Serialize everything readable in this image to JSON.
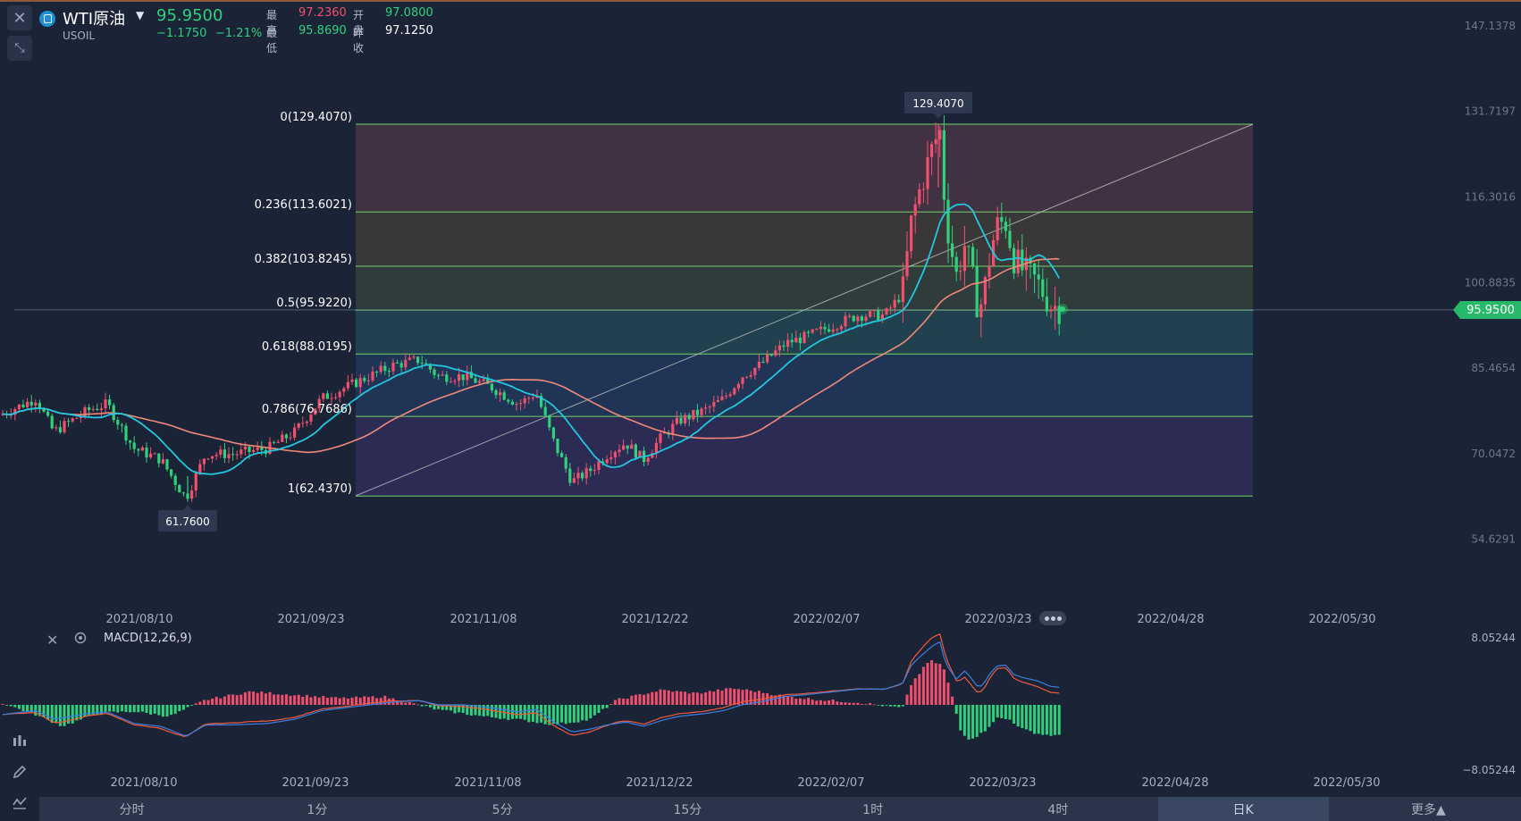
{
  "header": {
    "symbol_name": "WTI原油",
    "symbol_code": "USOIL",
    "price": "95.9500",
    "change": "−1.1750",
    "change_pct": "−1.21%",
    "high_label": "最高",
    "high": "97.2360",
    "open_label": "开盘",
    "open": "97.0800",
    "low_label": "最低",
    "low": "95.8690",
    "prev_label": "昨收",
    "prev_close": "97.1250"
  },
  "price_axis": [
    "147.1378",
    "131.7197",
    "116.3016",
    "100.8835",
    "85.4654",
    "70.0472",
    "54.6291"
  ],
  "current_price_tag": "95.9500",
  "date_axis": [
    "2021/08/10",
    "2021/09/23",
    "2021/11/08",
    "2021/12/22",
    "2022/02/07",
    "2022/03/23",
    "2022/04/28",
    "2022/05/30"
  ],
  "fib_levels": [
    {
      "label": "0(129.4070)",
      "value": 129.407
    },
    {
      "label": "0.236(113.6021)",
      "value": 113.6021
    },
    {
      "label": "0.382(103.8245)",
      "value": 103.8245
    },
    {
      "label": "0.5(95.9220)",
      "value": 95.922
    },
    {
      "label": "0.618(88.0195)",
      "value": 88.0195
    },
    {
      "label": "0.786(76.7686)",
      "value": 76.7686
    },
    {
      "label": "1(62.4370)",
      "value": 62.437
    }
  ],
  "tooltips": {
    "high": "129.4070",
    "low": "61.7600"
  },
  "macd": {
    "label": "MACD(12,26,9)",
    "axis_top": "8.05244",
    "axis_bottom": "−8.05244"
  },
  "macd_date_axis": [
    "2021/08/10",
    "2021/09/23",
    "2021/11/08",
    "2021/12/22",
    "2022/02/07",
    "2022/03/23",
    "2022/04/28",
    "2022/05/30"
  ],
  "timeframes": [
    "分时",
    "1分",
    "5分",
    "15分",
    "1时",
    "4时",
    "日K",
    "更多▲"
  ],
  "active_timeframe": "日K",
  "colors": {
    "up": "#f0506e",
    "down": "#30d17c",
    "ma_fast": "#22c7e0",
    "ma_slow": "#ef8a7a",
    "fib_line": "#6fd36a"
  },
  "icons": {
    "close": "close-icon",
    "expand": "expand-icon",
    "indicator": "indicator-icon",
    "draw": "pencil-icon",
    "trend": "trend-icon",
    "settings": "settings-icon"
  }
}
